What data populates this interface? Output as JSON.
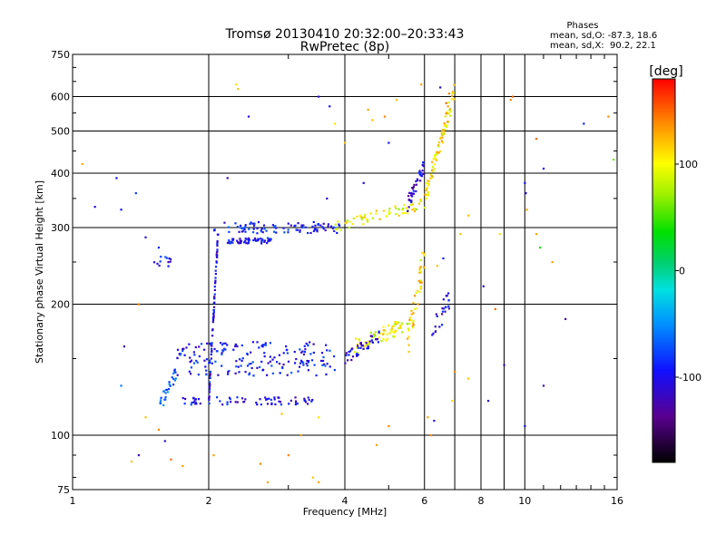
{
  "chart_data": {
    "type": "scatter",
    "title": "Tromsø 20130410 20:32:00–20:33:43",
    "subtitle": "RwPretec (8p)",
    "xlabel": "Frequency [MHz]",
    "ylabel": "Stationary phase Virtual Height [km]",
    "x_scale": "log",
    "y_scale": "log",
    "xlim": [
      1,
      16
    ],
    "ylim": [
      75,
      750
    ],
    "x_ticks": [
      1,
      2,
      4,
      6,
      8,
      10,
      16
    ],
    "x_gridlines": [
      2,
      4,
      6,
      7,
      8,
      9,
      10
    ],
    "y_ticks": [
      75,
      100,
      200,
      300,
      400,
      500,
      600,
      750
    ],
    "grid": true,
    "stats": {
      "title": "Phases",
      "line1": "mean, sd,O: -87.3, 18.6",
      "line2": "mean, sd,X:  90.2, 22.1"
    },
    "colorbar": {
      "label": "[deg]",
      "range": [
        -180,
        180
      ],
      "ticks": [
        100,
        0,
        -100
      ]
    },
    "traces": [
      {
        "name": "",
        "x_range": [
          2.05,
          3.9
        ],
        "y": 300,
        "y_spread": 0.03,
        "phase": -95,
        "n": 90
      },
      {
        "name": "",
        "x_range": [
          2.2,
          2.75
        ],
        "y": 280,
        "y_spread": 0.015,
        "phase": -100,
        "n": 60
      },
      {
        "name": "",
        "x_range": [
          3.8,
          5.9
        ],
        "y": [
          300,
          340
        ],
        "y_spread": 0.03,
        "phase": 95,
        "n": 60
      },
      {
        "name": "",
        "x_range": [
          5.5,
          6.0
        ],
        "y": [
          340,
          420
        ],
        "y_spread": 0.04,
        "phase": -110,
        "n": 40
      },
      {
        "name": "",
        "x_range": [
          6.0,
          7.0
        ],
        "y": [
          350,
          620
        ],
        "y_spread": 0.05,
        "phase": 110,
        "n": 80
      },
      {
        "name": "",
        "x_range": [
          1.7,
          3.8
        ],
        "y": 150,
        "y_spread": 0.09,
        "phase": -95,
        "n": 180
      },
      {
        "name": "",
        "x_range": [
          1.7,
          3.4
        ],
        "y": 120,
        "y_spread": 0.02,
        "phase": -100,
        "n": 70
      },
      {
        "name": "",
        "x_range": [
          2.0,
          2.1
        ],
        "y": [
          120,
          300
        ],
        "y_spread": 0.03,
        "phase": -105,
        "n": 70
      },
      {
        "name": "",
        "x_range": [
          4.2,
          5.5
        ],
        "y": [
          160,
          180
        ],
        "y_spread": 0.04,
        "phase": 95,
        "n": 60
      },
      {
        "name": "",
        "x_range": [
          4.0,
          4.8
        ],
        "y": [
          150,
          170
        ],
        "y_spread": 0.03,
        "phase": -110,
        "n": 40
      },
      {
        "name": "",
        "x_range": [
          5.5,
          6.0
        ],
        "y": [
          160,
          260
        ],
        "y_spread": 0.08,
        "phase": 110,
        "n": 45
      },
      {
        "name": "",
        "x_range": [
          6.2,
          6.8
        ],
        "y": [
          170,
          205
        ],
        "y_spread": 0.06,
        "phase": -110,
        "n": 25
      },
      {
        "name": "",
        "x_range": [
          1.55,
          1.7
        ],
        "y": [
          115,
          140
        ],
        "y_spread": 0.04,
        "phase": -60,
        "n": 30
      },
      {
        "name": "",
        "x_range": [
          1.5,
          1.65
        ],
        "y": 250,
        "y_spread": 0.03,
        "phase": -100,
        "n": 12
      }
    ],
    "scattered_points": [
      [
        1.05,
        420,
        130
      ],
      [
        1.12,
        335,
        -110
      ],
      [
        1.25,
        390,
        -100
      ],
      [
        1.28,
        330,
        -100
      ],
      [
        1.38,
        360,
        -80
      ],
      [
        1.45,
        285,
        -110
      ],
      [
        1.55,
        270,
        -90
      ],
      [
        1.4,
        200,
        140
      ],
      [
        1.3,
        160,
        -120
      ],
      [
        1.28,
        130,
        -60
      ],
      [
        1.45,
        110,
        120
      ],
      [
        1.55,
        103,
        140
      ],
      [
        1.6,
        97,
        -110
      ],
      [
        1.4,
        90,
        -120
      ],
      [
        1.35,
        87,
        120
      ],
      [
        1.65,
        88,
        150
      ],
      [
        1.75,
        85,
        130
      ],
      [
        2.3,
        640,
        110
      ],
      [
        2.32,
        625,
        120
      ],
      [
        2.45,
        540,
        -110
      ],
      [
        2.2,
        390,
        -120
      ],
      [
        2.05,
        90,
        130
      ],
      [
        2.6,
        86,
        140
      ],
      [
        2.7,
        78,
        130
      ],
      [
        3.5,
        600,
        -110
      ],
      [
        3.7,
        570,
        -100
      ],
      [
        3.8,
        520,
        110
      ],
      [
        3.65,
        350,
        -110
      ],
      [
        4.5,
        560,
        130
      ],
      [
        4.9,
        540,
        140
      ],
      [
        4.6,
        530,
        120
      ],
      [
        5.2,
        590,
        120
      ],
      [
        5.9,
        640,
        130
      ],
      [
        6.5,
        630,
        -110
      ],
      [
        6.8,
        610,
        140
      ],
      [
        6.7,
        580,
        150
      ],
      [
        4.4,
        380,
        -110
      ],
      [
        5.0,
        470,
        -100
      ],
      [
        4.0,
        470,
        120
      ],
      [
        7.5,
        320,
        120
      ],
      [
        7.2,
        290,
        120
      ],
      [
        8.8,
        290,
        110
      ],
      [
        9.4,
        600,
        150
      ],
      [
        9.3,
        590,
        140
      ],
      [
        10.0,
        380,
        -100
      ],
      [
        10.05,
        360,
        -110
      ],
      [
        10.1,
        330,
        130
      ],
      [
        10.6,
        290,
        130
      ],
      [
        10.8,
        270,
        40
      ],
      [
        11.0,
        410,
        -100
      ],
      [
        10.6,
        480,
        150
      ],
      [
        11.5,
        250,
        130
      ],
      [
        12.3,
        185,
        -130
      ],
      [
        13.5,
        520,
        -90
      ],
      [
        15.3,
        540,
        140
      ],
      [
        15.7,
        430,
        60
      ],
      [
        10.0,
        105,
        -100
      ],
      [
        9.0,
        145,
        -120
      ],
      [
        8.6,
        195,
        150
      ],
      [
        8.1,
        220,
        -110
      ],
      [
        7.5,
        135,
        120
      ],
      [
        8.3,
        120,
        -110
      ],
      [
        11.0,
        130,
        -120
      ],
      [
        4.7,
        95,
        130
      ],
      [
        5.0,
        105,
        140
      ],
      [
        3.5,
        110,
        110
      ],
      [
        3.2,
        100,
        130
      ],
      [
        2.9,
        112,
        120
      ],
      [
        3.0,
        90,
        140
      ],
      [
        3.4,
        80,
        120
      ],
      [
        3.5,
        78,
        130
      ],
      [
        6.1,
        110,
        130
      ],
      [
        6.3,
        108,
        -110
      ],
      [
        6.2,
        100,
        140
      ],
      [
        7.0,
        140,
        140
      ],
      [
        6.9,
        120,
        110
      ],
      [
        6.6,
        255,
        -90
      ],
      [
        6.4,
        245,
        120
      ]
    ]
  }
}
